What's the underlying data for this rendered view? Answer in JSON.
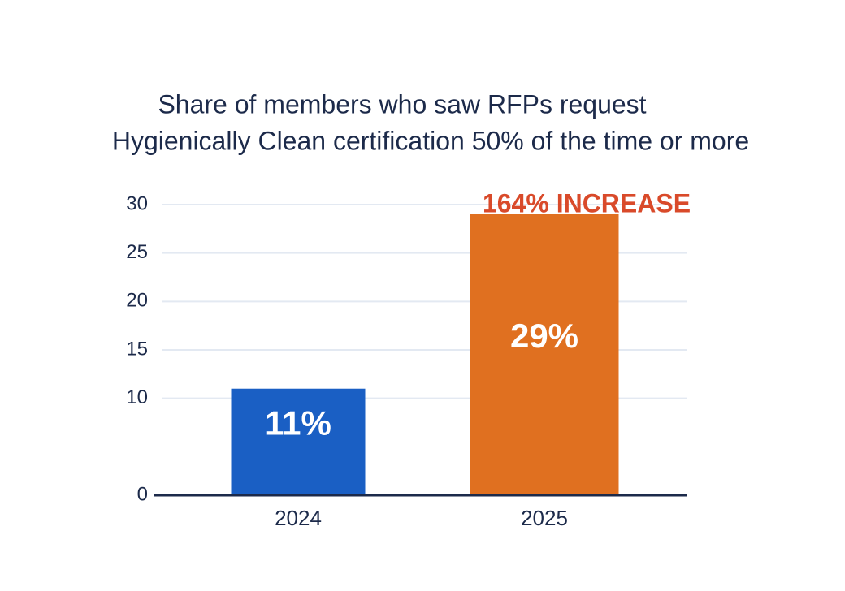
{
  "chart_data": {
    "type": "bar",
    "title": [
      "Share of members who saw RFPs request",
      "Hygienically Clean certification 50% of the time or more"
    ],
    "annotation": "164% INCREASE",
    "categories": [
      "2024",
      "2025"
    ],
    "values": [
      11,
      29
    ],
    "value_labels": [
      "11%",
      "29%"
    ],
    "colors": [
      "#1a5fc4",
      "#e07020"
    ],
    "ylim": [
      0,
      30
    ],
    "yticks": [
      0,
      10,
      15,
      20,
      25,
      30
    ],
    "grid": true
  }
}
